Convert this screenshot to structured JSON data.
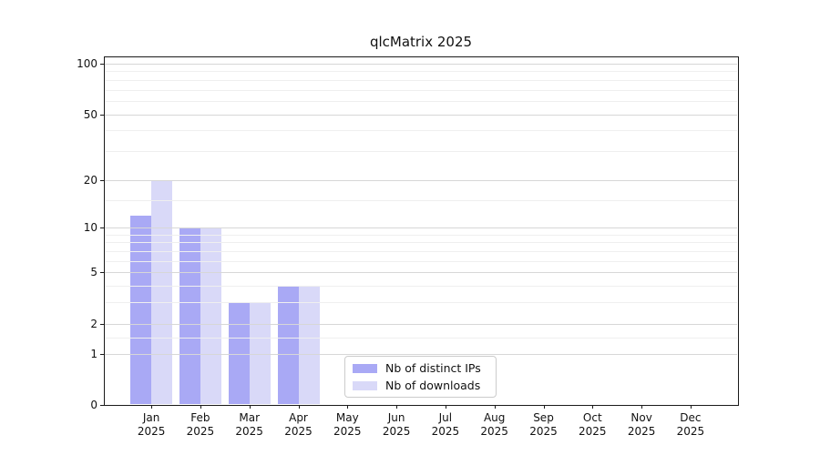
{
  "figure_title": "qlcMatrix 2025",
  "chart_data": {
    "type": "bar",
    "title": "qlcMatrix 2025",
    "xlabel": "",
    "ylabel": "",
    "x_ticks": [
      {
        "month": "Jan",
        "year": "2025"
      },
      {
        "month": "Feb",
        "year": "2025"
      },
      {
        "month": "Mar",
        "year": "2025"
      },
      {
        "month": "Apr",
        "year": "2025"
      },
      {
        "month": "May",
        "year": "2025"
      },
      {
        "month": "Jun",
        "year": "2025"
      },
      {
        "month": "Jul",
        "year": "2025"
      },
      {
        "month": "Aug",
        "year": "2025"
      },
      {
        "month": "Sep",
        "year": "2025"
      },
      {
        "month": "Oct",
        "year": "2025"
      },
      {
        "month": "Nov",
        "year": "2025"
      },
      {
        "month": "Dec",
        "year": "2025"
      }
    ],
    "series": [
      {
        "name": "Nb of distinct IPs",
        "color": "#a9a9f5",
        "values": [
          12,
          10,
          3,
          4,
          0,
          0,
          0,
          0,
          0,
          0,
          0,
          0
        ]
      },
      {
        "name": "Nb of downloads",
        "color": "#d9d9f8",
        "values": [
          20,
          10,
          3,
          4,
          0,
          0,
          0,
          0,
          0,
          0,
          0,
          0
        ]
      }
    ],
    "yscale": "log10(1+x)",
    "ylim": [
      0,
      110
    ],
    "y_major_ticks": [
      0,
      1,
      2,
      5,
      10,
      20,
      50,
      100
    ],
    "y_minor_ticks": [
      1.5,
      3,
      4,
      6,
      7,
      8,
      9,
      15,
      30,
      40,
      60,
      70,
      80,
      90
    ],
    "grid": "horizontal",
    "legend_position": "inside lower center"
  },
  "colors": {
    "grid_major": "#d7d7d7",
    "grid_minor": "#efefef",
    "axis": "#1a1a1a",
    "background": "#ffffff"
  }
}
